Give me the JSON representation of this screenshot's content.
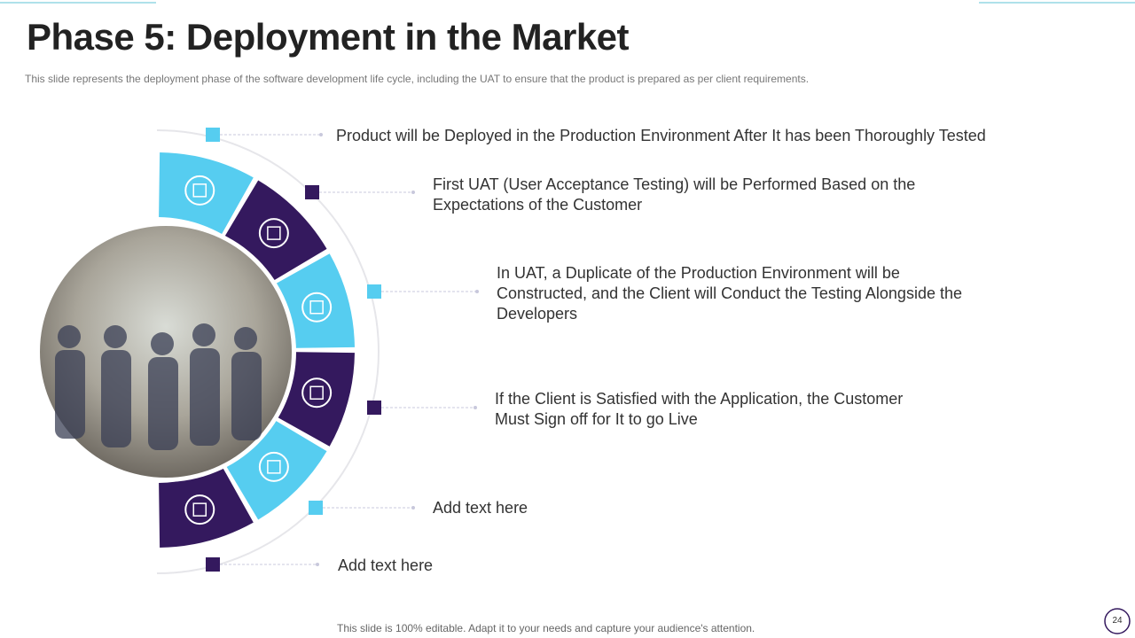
{
  "header": {
    "title": "Phase 5: Deployment in the Market",
    "subtitle": "This slide represents the deployment phase of the software development  life cycle, including the UAT to ensure that the product is prepared  as per client requirements."
  },
  "items": [
    {
      "text": "Product will be Deployed in the Production Environment After It has been Thoroughly Tested"
    },
    {
      "text": "First UAT (User Acceptance Testing) will be Performed Based on the Expectations of the Customer"
    },
    {
      "text": "In UAT, a Duplicate of the Production Environment will be Constructed, and the Client will Conduct the Testing Alongside the Developers"
    },
    {
      "text": "If the Client is Satisfied with the Application, the Customer Must Sign off for It to go Live"
    },
    {
      "text": "Add text here"
    },
    {
      "text": "Add text here"
    }
  ],
  "footer": {
    "note": "This slide is 100% editable. Adapt it to your needs and capture your audience's attention.",
    "page": "24"
  }
}
